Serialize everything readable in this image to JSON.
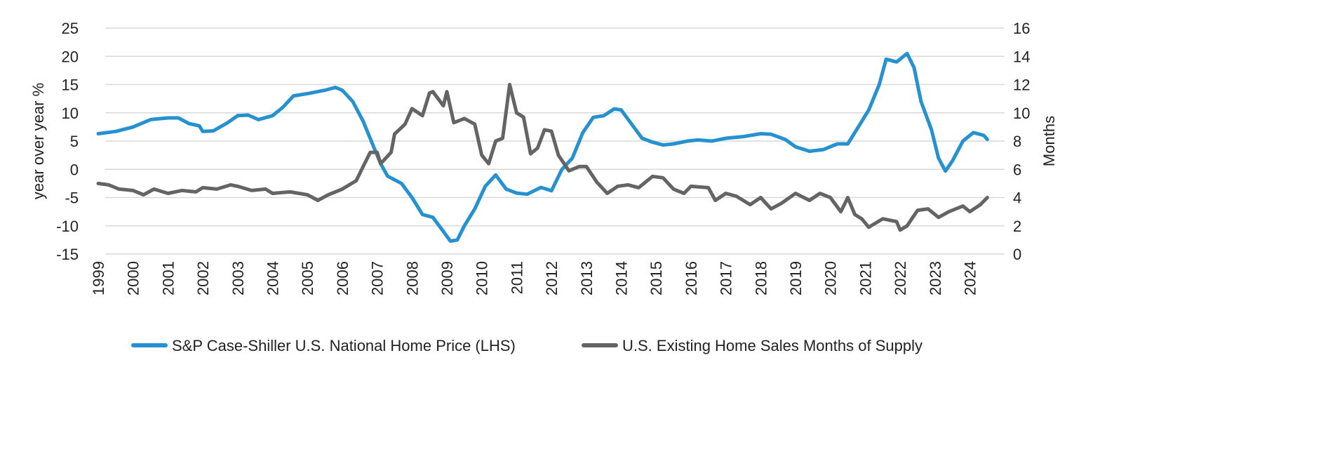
{
  "chart_data": {
    "type": "line",
    "title": "",
    "xlabel": "",
    "ylabel": "year over year %",
    "y2label": "Months",
    "ylim": [
      -15,
      25
    ],
    "y2lim": [
      0,
      16
    ],
    "yticks": [
      "25",
      "20",
      "15",
      "10",
      "5",
      "0",
      "-5",
      "-10",
      "-15"
    ],
    "y2ticks": [
      "16",
      "14",
      "12",
      "10",
      "8",
      "6",
      "4",
      "2",
      "0"
    ],
    "xticks": [
      "1999",
      "2000",
      "2001",
      "2002",
      "2003",
      "2004",
      "2005",
      "2006",
      "2007",
      "2008",
      "2009",
      "2010",
      "2011",
      "2012",
      "2013",
      "2014",
      "2015",
      "2016",
      "2017",
      "2018",
      "2019",
      "2020",
      "2021",
      "2022",
      "2023",
      "2024"
    ],
    "grid": true,
    "legend_position": "bottom",
    "series": [
      {
        "name": "S&P Case-Shiller U.S. National Home Price (LHS)",
        "axis": "left",
        "color": "#2591d0",
        "x": [
          1999.0,
          1999.5,
          2000.0,
          2000.5,
          2001.0,
          2001.3,
          2001.6,
          2001.9,
          2002.0,
          2002.3,
          2002.7,
          2003.0,
          2003.3,
          2003.6,
          2004.0,
          2004.3,
          2004.6,
          2005.0,
          2005.5,
          2005.8,
          2006.0,
          2006.3,
          2006.6,
          2006.9,
          2007.1,
          2007.3,
          2007.7,
          2008.0,
          2008.3,
          2008.6,
          2008.9,
          2009.1,
          2009.3,
          2009.5,
          2009.8,
          2010.1,
          2010.4,
          2010.7,
          2011.0,
          2011.3,
          2011.7,
          2012.0,
          2012.3,
          2012.6,
          2012.9,
          2013.2,
          2013.5,
          2013.8,
          2014.0,
          2014.3,
          2014.6,
          2014.9,
          2015.2,
          2015.5,
          2015.9,
          2016.2,
          2016.6,
          2017.0,
          2017.5,
          2018.0,
          2018.3,
          2018.7,
          2019.0,
          2019.4,
          2019.8,
          2020.2,
          2020.5,
          2020.8,
          2021.1,
          2021.4,
          2021.6,
          2021.9,
          2022.2,
          2022.4,
          2022.6,
          2022.9,
          2023.1,
          2023.3,
          2023.5,
          2023.8,
          2024.1,
          2024.4,
          2024.5
        ],
        "y": [
          6.3,
          6.7,
          7.5,
          8.8,
          9.1,
          9.1,
          8.1,
          7.7,
          6.7,
          6.8,
          8.2,
          9.5,
          9.6,
          8.8,
          9.5,
          11,
          13,
          13.4,
          14.0,
          14.5,
          14.0,
          12,
          8.5,
          4,
          1,
          -1.2,
          -2.5,
          -5,
          -8,
          -8.5,
          -11,
          -12.7,
          -12.5,
          -10,
          -7,
          -3,
          -1,
          -3.5,
          -4.2,
          -4.4,
          -3.2,
          -3.8,
          0,
          2.0,
          6.5,
          9.2,
          9.5,
          10.7,
          10.5,
          8,
          5.5,
          4.8,
          4.3,
          4.5,
          5.0,
          5.2,
          5.0,
          5.5,
          5.8,
          6.3,
          6.2,
          5.3,
          4.0,
          3.2,
          3.5,
          4.5,
          4.5,
          7.5,
          10.5,
          15,
          19.5,
          19.0,
          20.5,
          18,
          12,
          7,
          2,
          -0.3,
          1.5,
          5,
          6.5,
          6.0,
          5.3
        ]
      },
      {
        "name": "U.S. Existing Home Sales Months of Supply",
        "axis": "right",
        "color": "#636463",
        "x": [
          1999.0,
          1999.3,
          1999.6,
          2000.0,
          2000.3,
          2000.6,
          2001.0,
          2001.4,
          2001.8,
          2002.0,
          2002.4,
          2002.8,
          2003.0,
          2003.4,
          2003.8,
          2004.0,
          2004.5,
          2005.0,
          2005.3,
          2005.6,
          2006.0,
          2006.4,
          2006.6,
          2006.8,
          2007.0,
          2007.1,
          2007.4,
          2007.5,
          2007.8,
          2008.0,
          2008.3,
          2008.5,
          2008.6,
          2008.9,
          2009.0,
          2009.2,
          2009.5,
          2009.8,
          2010.0,
          2010.2,
          2010.4,
          2010.6,
          2010.8,
          2011.0,
          2011.2,
          2011.4,
          2011.6,
          2011.8,
          2012.0,
          2012.2,
          2012.5,
          2012.8,
          2013.0,
          2013.3,
          2013.6,
          2013.9,
          2014.2,
          2014.5,
          2014.9,
          2015.2,
          2015.5,
          2015.8,
          2016.0,
          2016.5,
          2016.7,
          2017.0,
          2017.3,
          2017.7,
          2018.0,
          2018.3,
          2018.6,
          2019.0,
          2019.4,
          2019.7,
          2020.0,
          2020.3,
          2020.5,
          2020.7,
          2020.9,
          2021.1,
          2021.5,
          2021.9,
          2022.0,
          2022.2,
          2022.5,
          2022.8,
          2023.1,
          2023.4,
          2023.8,
          2024.0,
          2024.3,
          2024.5
        ],
        "y": [
          5.0,
          4.9,
          4.6,
          4.5,
          4.2,
          4.6,
          4.3,
          4.5,
          4.4,
          4.7,
          4.6,
          4.9,
          4.8,
          4.5,
          4.6,
          4.3,
          4.4,
          4.2,
          3.8,
          4.2,
          4.6,
          5.2,
          6.2,
          7.2,
          7.2,
          6.4,
          7.2,
          8.5,
          9.2,
          10.3,
          9.8,
          11.4,
          11.5,
          10.5,
          11.5,
          9.3,
          9.6,
          9.2,
          7.0,
          6.4,
          8.0,
          8.2,
          12.0,
          10.0,
          9.7,
          7.1,
          7.5,
          8.8,
          8.7,
          7.0,
          5.9,
          6.2,
          6.2,
          5.1,
          4.3,
          4.8,
          4.9,
          4.7,
          5.5,
          5.4,
          4.6,
          4.3,
          4.8,
          4.7,
          3.8,
          4.3,
          4.1,
          3.5,
          4.0,
          3.2,
          3.6,
          4.3,
          3.8,
          4.3,
          4.0,
          3.0,
          4.0,
          2.8,
          2.5,
          1.9,
          2.5,
          2.3,
          1.7,
          2.0,
          3.1,
          3.2,
          2.6,
          3.0,
          3.4,
          3.0,
          3.5,
          4.0
        ]
      }
    ]
  }
}
